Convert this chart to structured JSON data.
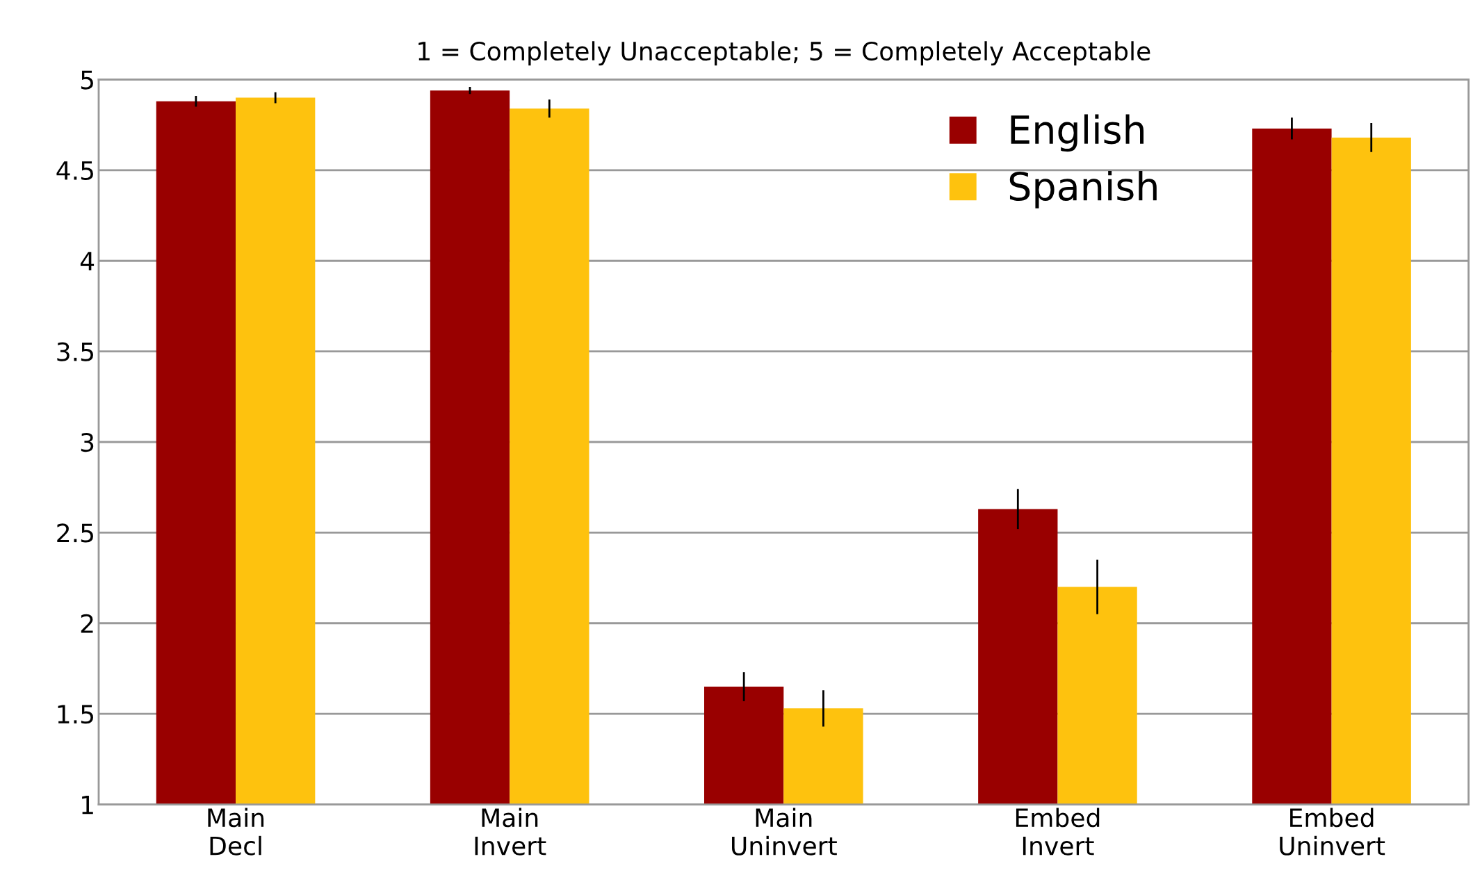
{
  "chart_data": {
    "type": "bar",
    "title": "1 = Completely Unacceptable; 5 = Completely Acceptable",
    "categories": [
      "Main\nDecl",
      "Main\nInvert",
      "Main\nUninvert",
      "Embed\nInvert",
      "Embed\nUninvert"
    ],
    "series": [
      {
        "name": "English",
        "color": "#990000",
        "values": [
          4.88,
          4.94,
          1.65,
          2.63,
          4.73
        ],
        "errors": [
          0.03,
          0.02,
          0.08,
          0.11,
          0.06
        ]
      },
      {
        "name": "Spanish",
        "color": "#fec20e",
        "values": [
          4.9,
          4.84,
          1.53,
          2.2,
          4.68
        ],
        "errors": [
          0.03,
          0.05,
          0.1,
          0.15,
          0.08
        ]
      }
    ],
    "ylim": [
      1,
      5
    ],
    "yticks": [
      1,
      1.5,
      2,
      2.5,
      3,
      3.5,
      4,
      4.5,
      5
    ],
    "grid": "y",
    "legend": "top right"
  }
}
